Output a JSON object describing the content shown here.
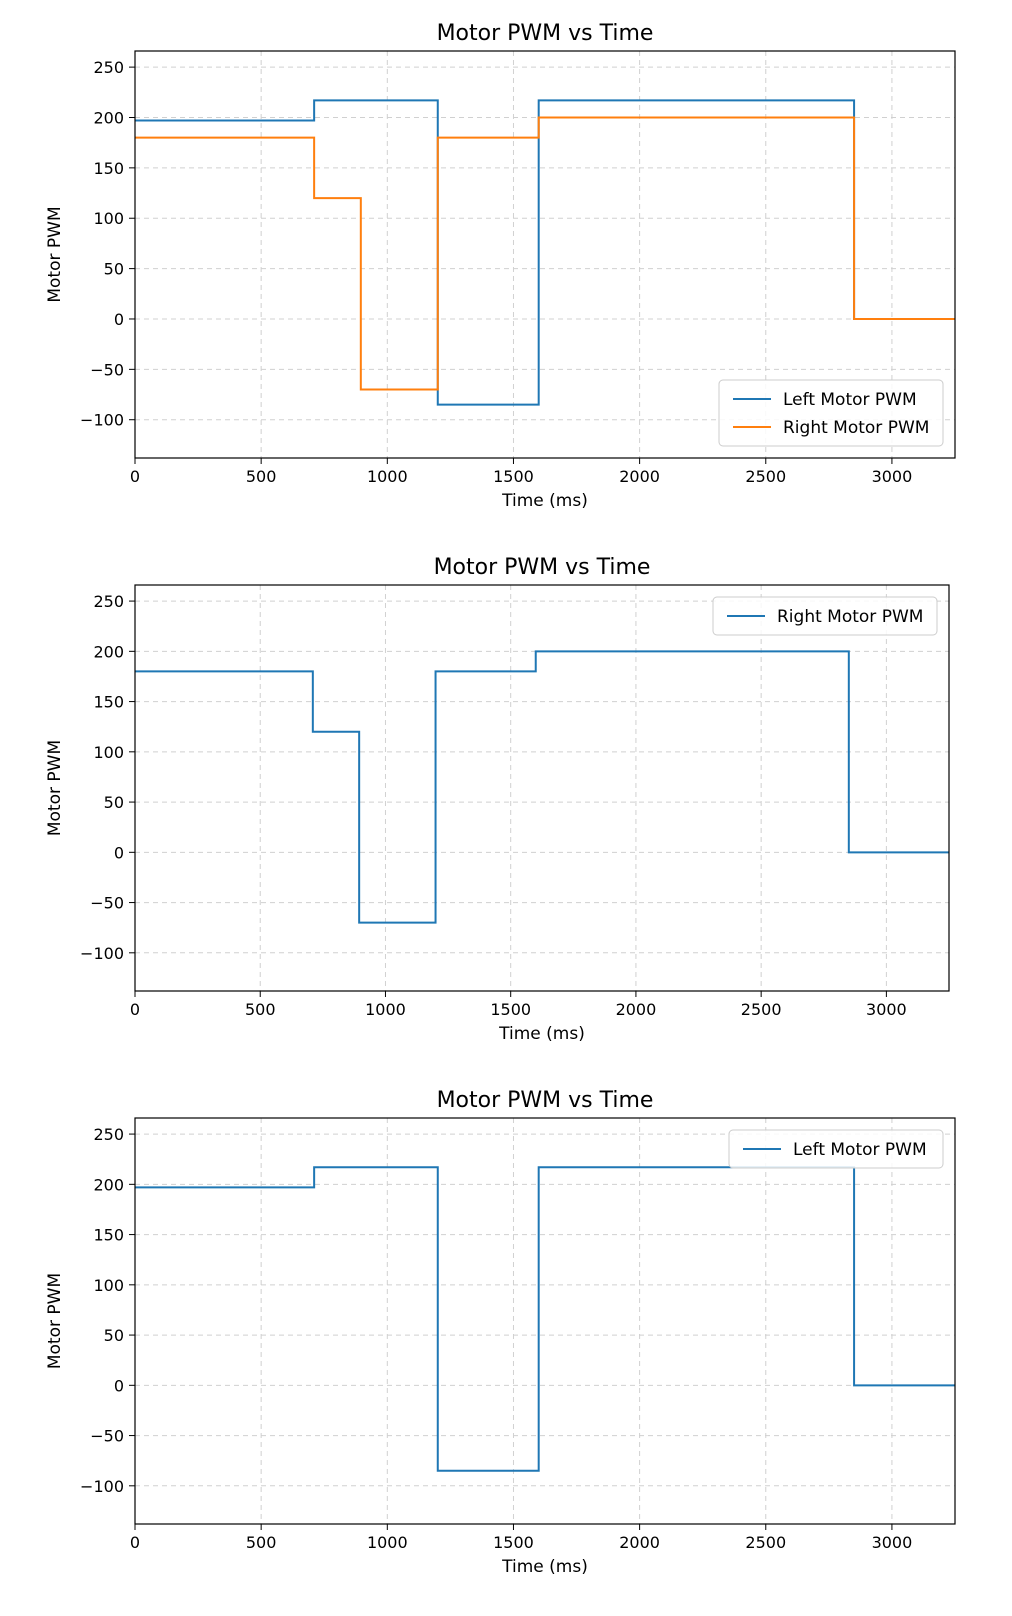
{
  "chart_data": [
    {
      "type": "line",
      "step": "post",
      "title": "Motor PWM vs Time",
      "xlabel": "Time (ms)",
      "ylabel": "Motor PWM",
      "xlim": [
        0,
        3250
      ],
      "ylim": [
        -138,
        266
      ],
      "xticks": [
        0,
        500,
        1000,
        1500,
        2000,
        2500,
        3000
      ],
      "yticks": [
        -100,
        -50,
        0,
        50,
        100,
        150,
        200,
        250
      ],
      "grid": true,
      "legend_position": "lower-right",
      "series": [
        {
          "name": "Left Motor PWM",
          "color": "#1f77b4",
          "x": [
            0,
            710,
            1200,
            1600,
            2850,
            3250
          ],
          "y": [
            197,
            217,
            -85,
            217,
            0,
            0
          ]
        },
        {
          "name": "Right Motor PWM",
          "color": "#ff7f0e",
          "x": [
            0,
            710,
            895,
            1200,
            1600,
            2850,
            3250
          ],
          "y": [
            180,
            120,
            -70,
            180,
            200,
            0,
            0
          ]
        }
      ]
    },
    {
      "type": "line",
      "step": "post",
      "title": "Motor PWM vs Time",
      "xlabel": "Time (ms)",
      "ylabel": "Motor PWM",
      "xlim": [
        0,
        3250
      ],
      "ylim": [
        -138,
        266
      ],
      "xticks": [
        0,
        500,
        1000,
        1500,
        2000,
        2500,
        3000
      ],
      "yticks": [
        -100,
        -50,
        0,
        50,
        100,
        150,
        200,
        250
      ],
      "grid": true,
      "legend_position": "top-right",
      "series": [
        {
          "name": "Right Motor PWM",
          "color": "#1f77b4",
          "x": [
            0,
            710,
            895,
            1200,
            1600,
            2850,
            3250
          ],
          "y": [
            180,
            120,
            -70,
            180,
            200,
            0,
            0
          ]
        }
      ]
    },
    {
      "type": "line",
      "step": "post",
      "title": "Motor PWM vs Time",
      "xlabel": "Time (ms)",
      "ylabel": "Motor PWM",
      "xlim": [
        0,
        3250
      ],
      "ylim": [
        -138,
        266
      ],
      "xticks": [
        0,
        500,
        1000,
        1500,
        2000,
        2500,
        3000
      ],
      "yticks": [
        -100,
        -50,
        0,
        50,
        100,
        150,
        200,
        250
      ],
      "grid": true,
      "legend_position": "top-right",
      "series": [
        {
          "name": "Left Motor PWM",
          "color": "#1f77b4",
          "x": [
            0,
            710,
            1200,
            1600,
            2850,
            3250
          ],
          "y": [
            197,
            217,
            -85,
            217,
            0,
            0
          ]
        }
      ]
    }
  ]
}
